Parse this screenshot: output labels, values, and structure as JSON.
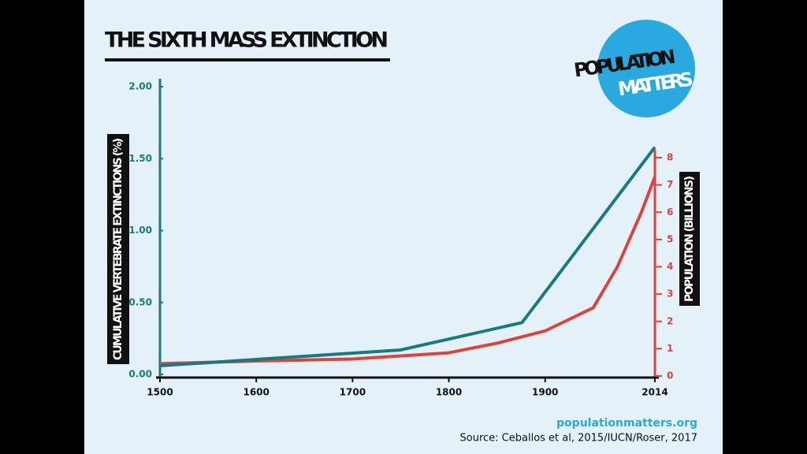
{
  "chart_data": {
    "type": "line",
    "title": "THE SIXTH MASS EXTINCTION",
    "logo_top": "POPULATION",
    "logo_bottom": "MATTERS",
    "y_label": "CUMULATIVE VERTEBRATE EXTINCTIONS (%)",
    "y2_label": "POPULATION (BILLIONS)",
    "website": "populationmatters.org",
    "source": "Source: Ceballos et al, 2015/IUCN/Roser, 2017",
    "xlim": [
      1500,
      2014
    ],
    "xticks": [
      1500,
      1600,
      1700,
      1800,
      1900,
      2014
    ],
    "ylim": [
      0,
      2
    ],
    "yticks": [
      {
        "value": 0,
        "label": "0.00"
      },
      {
        "value": 0.5,
        "label": "0.50"
      },
      {
        "value": 1,
        "label": "1.00"
      },
      {
        "value": 1.5,
        "label": "1.50"
      },
      {
        "value": 2,
        "label": "2.00"
      }
    ],
    "y2lim": [
      0,
      8
    ],
    "y2ticks": [
      0,
      1,
      2,
      3,
      4,
      5,
      6,
      7,
      8
    ],
    "series": [
      {
        "name": "Cumulative vertebrate extinctions",
        "color": "#187a80",
        "x": [
          1500,
          1750,
          1876,
          2014
        ],
        "values": [
          0.06,
          0.17,
          0.36,
          1.58
        ]
      },
      {
        "name": "Population",
        "color": "#d9453a",
        "axis": "y2",
        "x": [
          1500,
          1600,
          1700,
          1800,
          1850,
          1900,
          1950,
          1975,
          2000,
          2014
        ],
        "values": [
          0.45,
          0.55,
          0.62,
          0.85,
          1.2,
          1.65,
          2.5,
          4.0,
          6.0,
          7.3
        ]
      }
    ]
  }
}
